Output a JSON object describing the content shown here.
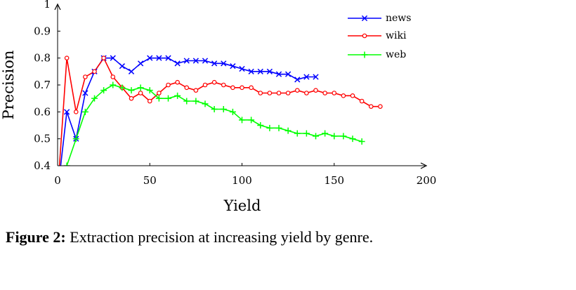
{
  "caption": {
    "label": "Figure 2:",
    "text": "Extraction precision at increasing yield by genre."
  },
  "chart_data": {
    "type": "line",
    "xlabel": "Yield",
    "ylabel": "Precision",
    "xlim": [
      0,
      200
    ],
    "ylim": [
      0.4,
      1
    ],
    "xticks": [
      0,
      50,
      100,
      150,
      200
    ],
    "yticks": [
      0.4,
      0.5,
      0.6,
      0.7,
      0.8,
      0.9,
      1
    ],
    "ytick_labels": [
      "0.4",
      "0.5",
      "0.6",
      "0.7",
      "0.8",
      "0.9",
      "1"
    ],
    "grid": false,
    "legend_position": "top-right",
    "series": [
      {
        "name": "news",
        "color": "#0000ff",
        "marker": "x",
        "x": [
          0,
          5,
          10,
          15,
          20,
          25,
          30,
          35,
          40,
          45,
          50,
          55,
          60,
          65,
          70,
          75,
          80,
          85,
          90,
          95,
          100,
          105,
          110,
          115,
          120,
          125,
          130,
          135,
          140
        ],
        "y": [
          0.3,
          0.6,
          0.5,
          0.67,
          0.75,
          0.8,
          0.8,
          0.77,
          0.75,
          0.78,
          0.8,
          0.8,
          0.8,
          0.78,
          0.79,
          0.79,
          0.79,
          0.78,
          0.78,
          0.77,
          0.76,
          0.75,
          0.75,
          0.75,
          0.74,
          0.74,
          0.72,
          0.73,
          0.73
        ]
      },
      {
        "name": "wiki",
        "color": "#ff0000",
        "marker": "o",
        "x": [
          0,
          5,
          10,
          15,
          20,
          25,
          30,
          35,
          40,
          45,
          50,
          55,
          60,
          65,
          70,
          75,
          80,
          85,
          90,
          95,
          100,
          105,
          110,
          115,
          120,
          125,
          130,
          135,
          140,
          145,
          150,
          155,
          160,
          165,
          170,
          175
        ],
        "y": [
          0.3,
          0.8,
          0.6,
          0.73,
          0.75,
          0.8,
          0.73,
          0.69,
          0.65,
          0.67,
          0.64,
          0.67,
          0.7,
          0.71,
          0.69,
          0.68,
          0.7,
          0.71,
          0.7,
          0.69,
          0.69,
          0.69,
          0.67,
          0.67,
          0.67,
          0.67,
          0.68,
          0.67,
          0.68,
          0.67,
          0.67,
          0.66,
          0.66,
          0.64,
          0.62,
          0.62
        ]
      },
      {
        "name": "web",
        "color": "#00ff00",
        "marker": "+",
        "x": [
          0,
          5,
          10,
          15,
          20,
          25,
          30,
          35,
          40,
          45,
          50,
          55,
          60,
          65,
          70,
          75,
          80,
          85,
          90,
          95,
          100,
          105,
          110,
          115,
          120,
          125,
          130,
          135,
          140,
          145,
          150,
          155,
          160,
          165
        ],
        "y": [
          0.3,
          0.4,
          0.5,
          0.6,
          0.65,
          0.68,
          0.7,
          0.69,
          0.68,
          0.69,
          0.68,
          0.65,
          0.65,
          0.66,
          0.64,
          0.64,
          0.63,
          0.61,
          0.61,
          0.6,
          0.57,
          0.57,
          0.55,
          0.54,
          0.54,
          0.53,
          0.52,
          0.52,
          0.51,
          0.52,
          0.51,
          0.51,
          0.5,
          0.49
        ]
      }
    ]
  }
}
